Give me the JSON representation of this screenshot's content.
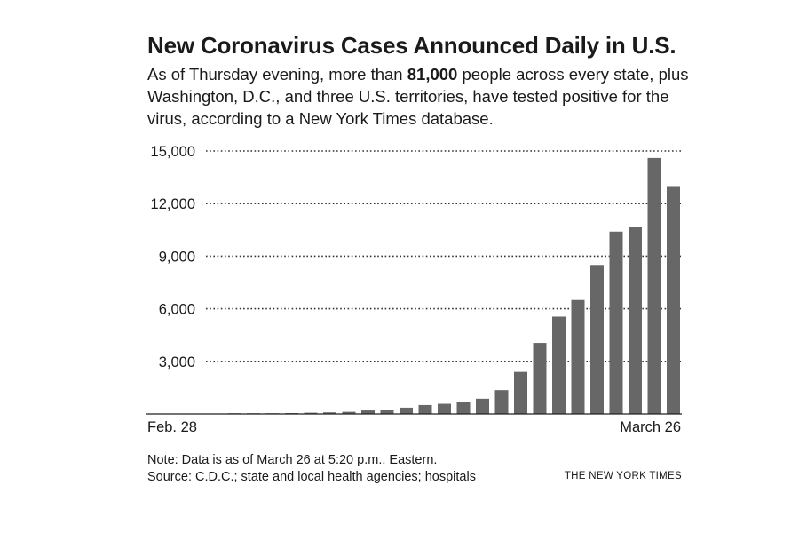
{
  "chart_data": {
    "type": "bar",
    "title": "New Coronavirus Cases Announced Daily in U.S.",
    "subtitle_parts": [
      "As of Thursday evening, more than ",
      "81,000",
      " people across every state, plus Washington, D.C., and three U.S. territories, have tested positive for the virus, according to a New York Times database."
    ],
    "xlabel_start": "Feb. 28",
    "xlabel_end": "March 26",
    "ylim": [
      0,
      15000
    ],
    "yticks": [
      3000,
      6000,
      9000,
      12000,
      15000
    ],
    "ytick_labels": [
      "3,000",
      "6,000",
      "9,000",
      "12,000",
      "15,000"
    ],
    "gridlines": "dotted",
    "values": [
      5,
      10,
      25,
      50,
      70,
      90,
      120,
      200,
      230,
      360,
      510,
      580,
      660,
      870,
      1360,
      2400,
      4050,
      5550,
      6500,
      8500,
      10400,
      10650,
      14600,
      13000
    ],
    "bar_color": "#676767"
  },
  "footer": {
    "note": "Note: Data is as of March 26 at 5:20 p.m., Eastern.",
    "source": "Source: C.D.C.; state and local health agencies; hospitals",
    "credit": "THE NEW YORK TIMES"
  }
}
